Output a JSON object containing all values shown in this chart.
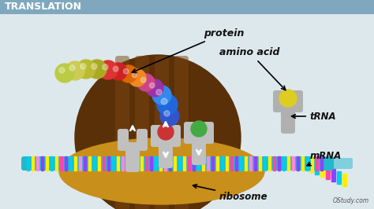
{
  "bg_color": "#dde8ed",
  "title_bar_color": "#7fa8be",
  "title_text": "TRANSLATION",
  "title_fontsize": 9,
  "title_color": "#ffffff",
  "watermark": "OStudy.com",
  "ribosome_bowl_color": "#c8901a",
  "ribosome_dome_color": "#5a3008",
  "ribosome_stripe_color": "#7a4510",
  "mRNA_base_color": "#22b8cc",
  "mRNA_bar_colors": [
    "#00ccee",
    "#ffee00",
    "#ff88dd",
    "#8844ff",
    "#ffee00",
    "#00ccee",
    "#ffee00",
    "#ff44aa",
    "#8844ff"
  ],
  "protein_bead_colors": [
    "#4466dd",
    "#3388ee",
    "#2299ff",
    "#cc4488",
    "#cc3366",
    "#ee8822",
    "#ee6600",
    "#cc2222",
    "#dd3333",
    "#aaaa22",
    "#bbbb33",
    "#cccc44"
  ],
  "amino_acid_color": "#ddcc22",
  "trna_body_color": "#aaaaaa",
  "trna_bead_incoming": "#ddcc22",
  "trna_bead_middle": "#cc3333",
  "trna_bead_green": "#44aa44",
  "label_protein": "protein",
  "label_amino_acid": "amino acid",
  "label_trna": "tRNA",
  "label_mrna": "mRNA",
  "label_ribosome": "ribosome",
  "label_fontsize": 8.5,
  "label_color": "#111111"
}
